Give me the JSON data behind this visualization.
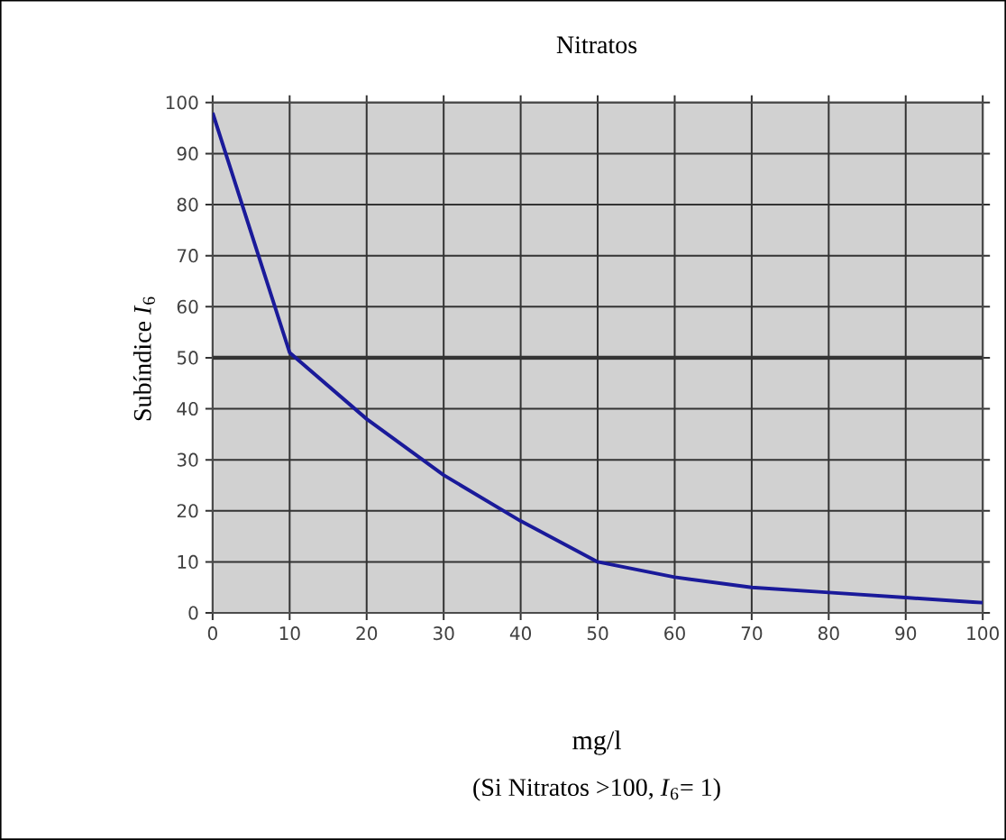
{
  "chart_data": {
    "type": "line",
    "title": "Nitratos",
    "xlabel": "mg/l",
    "ylabel": "Subíndice *I*$_{6}$",
    "annotations": [
      "(Si Nitratos >100, *I*$_{6}$= 1)"
    ],
    "x": [
      0,
      10,
      20,
      30,
      40,
      50,
      60,
      70,
      80,
      90,
      100
    ],
    "series": [
      {
        "color": "#1a1a9a",
        "values": [
          98,
          51,
          38,
          27,
          18,
          10,
          7,
          5,
          4,
          3,
          2
        ]
      }
    ],
    "xlim": [
      0,
      100
    ],
    "ylim": [
      0,
      100
    ],
    "xticks": [
      0,
      10,
      20,
      30,
      40,
      50,
      60,
      70,
      80,
      90,
      100
    ],
    "yticks": [
      0,
      10,
      20,
      30,
      40,
      50,
      60,
      70,
      80,
      90,
      100
    ],
    "ref_lines": [
      {
        "axis": "y",
        "value": 50,
        "color": "#333333"
      }
    ],
    "grid": true,
    "marker": "none",
    "line_style": "solid"
  }
}
